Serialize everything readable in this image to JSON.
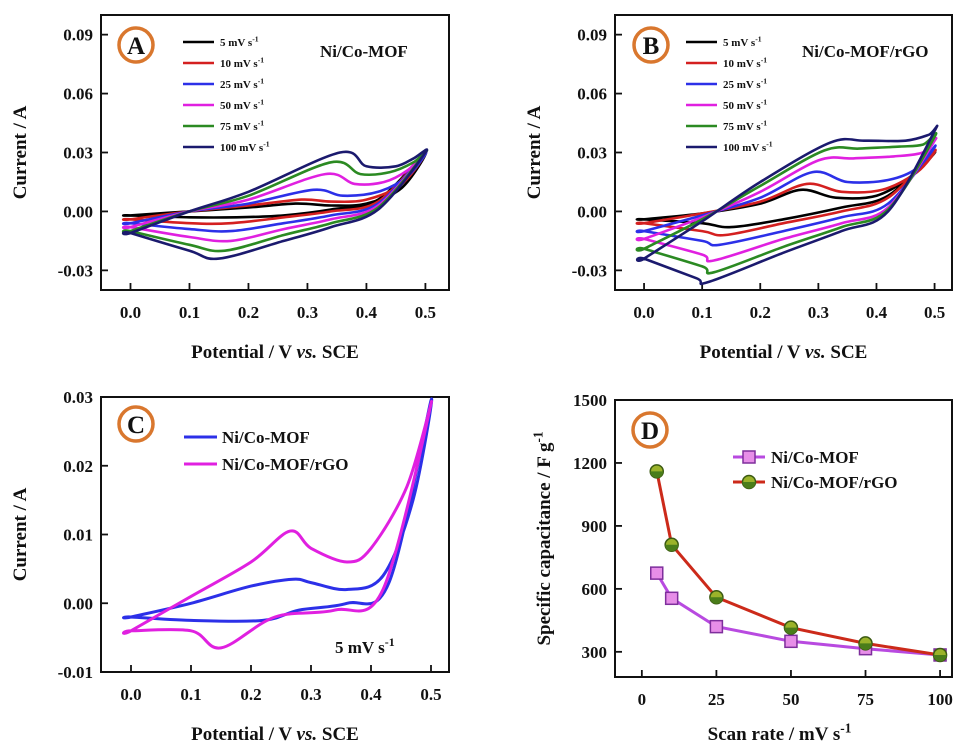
{
  "colors": {
    "axis": "#111111",
    "badge_ring": "#d9772e",
    "s5": "#000000",
    "s10": "#d42020",
    "s25": "#2c30e8",
    "s50": "#e020e0",
    "s75": "#2b8a22",
    "s100": "#1b1a6e",
    "d_mof": "#b84ae0",
    "d_rgo": "#cc2a1a"
  },
  "chart_data": [
    {
      "id": "A",
      "type": "line",
      "panel_label": "A",
      "title": "Ni/Co-MOF",
      "xlabel": "Potential / V vs. SCE",
      "ylabel": "Current / A",
      "xlim": [
        -0.05,
        0.54
      ],
      "ylim": [
        -0.04,
        0.1
      ],
      "xticks": [
        "0.0",
        "0.1",
        "0.2",
        "0.3",
        "0.4",
        "0.5"
      ],
      "yticks": [
        "0.09",
        "0.06",
        "0.03",
        "0.00",
        "-0.03"
      ],
      "legend_position": "top-left",
      "series": [
        {
          "name": "5 mV s-1",
          "color_key": "s5",
          "x": [
            0.0,
            0.1,
            0.2,
            0.28,
            0.34,
            0.4,
            0.46,
            0.5,
            0.42,
            0.34,
            0.26,
            0.18,
            0.1,
            0.0
          ],
          "y": [
            -0.002,
            0.0,
            0.002,
            0.004,
            0.003,
            0.004,
            0.012,
            0.03,
            0.006,
            0.001,
            -0.002,
            -0.003,
            -0.003,
            -0.002
          ]
        },
        {
          "name": "10 mV s-1",
          "color_key": "s10",
          "x": [
            0.0,
            0.1,
            0.2,
            0.29,
            0.34,
            0.4,
            0.46,
            0.5,
            0.42,
            0.34,
            0.26,
            0.17,
            0.1,
            0.0
          ],
          "y": [
            -0.004,
            0.0,
            0.003,
            0.006,
            0.005,
            0.006,
            0.014,
            0.03,
            0.005,
            0.0,
            -0.003,
            -0.006,
            -0.006,
            -0.004
          ]
        },
        {
          "name": "25 mV s-1",
          "color_key": "s25",
          "x": [
            0.0,
            0.1,
            0.2,
            0.31,
            0.36,
            0.42,
            0.47,
            0.5,
            0.42,
            0.34,
            0.26,
            0.17,
            0.1,
            0.0
          ],
          "y": [
            -0.006,
            0.0,
            0.004,
            0.011,
            0.008,
            0.01,
            0.018,
            0.03,
            0.004,
            -0.002,
            -0.006,
            -0.01,
            -0.009,
            -0.006
          ]
        },
        {
          "name": "50 mV s-1",
          "color_key": "s50",
          "x": [
            0.0,
            0.1,
            0.2,
            0.33,
            0.38,
            0.43,
            0.47,
            0.5,
            0.42,
            0.34,
            0.26,
            0.17,
            0.1,
            0.0
          ],
          "y": [
            -0.008,
            0.0,
            0.006,
            0.019,
            0.014,
            0.015,
            0.021,
            0.03,
            0.003,
            -0.004,
            -0.009,
            -0.015,
            -0.013,
            -0.008
          ]
        },
        {
          "name": "75 mV s-1",
          "color_key": "s75",
          "x": [
            0.0,
            0.1,
            0.2,
            0.34,
            0.39,
            0.44,
            0.48,
            0.5,
            0.42,
            0.34,
            0.26,
            0.16,
            0.1,
            0.0
          ],
          "y": [
            -0.01,
            0.0,
            0.008,
            0.025,
            0.019,
            0.02,
            0.025,
            0.03,
            0.002,
            -0.006,
            -0.012,
            -0.02,
            -0.017,
            -0.01
          ]
        },
        {
          "name": "100 mV s-1",
          "color_key": "s100",
          "x": [
            0.0,
            0.1,
            0.2,
            0.355,
            0.4,
            0.45,
            0.48,
            0.5,
            0.42,
            0.34,
            0.26,
            0.15,
            0.1,
            0.0
          ],
          "y": [
            -0.011,
            0.0,
            0.01,
            0.03,
            0.023,
            0.023,
            0.027,
            0.03,
            0.001,
            -0.008,
            -0.015,
            -0.024,
            -0.02,
            -0.011
          ]
        }
      ]
    },
    {
      "id": "B",
      "type": "line",
      "panel_label": "B",
      "title": "Ni/Co-MOF/rGO",
      "xlabel": "Potential / V vs. SCE",
      "ylabel": "Current / A",
      "xlim": [
        -0.05,
        0.53
      ],
      "ylim": [
        -0.04,
        0.1
      ],
      "xticks": [
        "0.0",
        "0.1",
        "0.2",
        "0.3",
        "0.4",
        "0.5"
      ],
      "yticks": [
        "0.09",
        "0.06",
        "0.03",
        "0.00",
        "-0.03"
      ],
      "legend_position": "top-left",
      "series": [
        {
          "name": "5 mV s-1",
          "color_key": "s5",
          "x": [
            0.0,
            0.1,
            0.2,
            0.27,
            0.33,
            0.4,
            0.46,
            0.5,
            0.42,
            0.34,
            0.24,
            0.15,
            0.1,
            0.0
          ],
          "y": [
            -0.004,
            -0.001,
            0.004,
            0.011,
            0.007,
            0.008,
            0.018,
            0.03,
            0.008,
            0.002,
            -0.004,
            -0.008,
            -0.006,
            -0.004
          ]
        },
        {
          "name": "10 mV s-1",
          "color_key": "s10",
          "x": [
            0.0,
            0.1,
            0.2,
            0.28,
            0.34,
            0.41,
            0.47,
            0.5,
            0.42,
            0.34,
            0.24,
            0.14,
            0.1,
            0.0
          ],
          "y": [
            -0.006,
            -0.001,
            0.005,
            0.014,
            0.01,
            0.011,
            0.02,
            0.031,
            0.007,
            0.0,
            -0.006,
            -0.012,
            -0.01,
            -0.006
          ]
        },
        {
          "name": "25 mV s-1",
          "color_key": "s25",
          "x": [
            0.0,
            0.1,
            0.2,
            0.29,
            0.35,
            0.42,
            0.47,
            0.5,
            0.42,
            0.34,
            0.24,
            0.13,
            0.1,
            0.0
          ],
          "y": [
            -0.01,
            -0.002,
            0.007,
            0.02,
            0.015,
            0.016,
            0.022,
            0.033,
            0.004,
            -0.003,
            -0.01,
            -0.017,
            -0.015,
            -0.01
          ]
        },
        {
          "name": "50 mV s-1",
          "color_key": "s50",
          "x": [
            0.0,
            0.1,
            0.2,
            0.3,
            0.36,
            0.43,
            0.48,
            0.5,
            0.42,
            0.34,
            0.24,
            0.12,
            0.1,
            0.0
          ],
          "y": [
            -0.014,
            -0.003,
            0.01,
            0.026,
            0.027,
            0.028,
            0.03,
            0.036,
            0.002,
            -0.006,
            -0.014,
            -0.025,
            -0.022,
            -0.014
          ]
        },
        {
          "name": "75 mV s-1",
          "color_key": "s75",
          "x": [
            0.0,
            0.1,
            0.2,
            0.31,
            0.37,
            0.44,
            0.48,
            0.5,
            0.42,
            0.34,
            0.24,
            0.12,
            0.1,
            0.0
          ],
          "y": [
            -0.019,
            -0.004,
            0.013,
            0.031,
            0.032,
            0.033,
            0.034,
            0.038,
            0.001,
            -0.008,
            -0.018,
            -0.031,
            -0.028,
            -0.019
          ]
        },
        {
          "name": "100 mV s-1",
          "color_key": "s100",
          "x": [
            0.0,
            0.1,
            0.2,
            0.32,
            0.38,
            0.45,
            0.49,
            0.5,
            0.42,
            0.34,
            0.24,
            0.11,
            0.09,
            0.0
          ],
          "y": [
            -0.024,
            -0.005,
            0.015,
            0.035,
            0.036,
            0.036,
            0.039,
            0.041,
            0.0,
            -0.01,
            -0.021,
            -0.036,
            -0.034,
            -0.024
          ]
        }
      ]
    },
    {
      "id": "C",
      "type": "line",
      "panel_label": "C",
      "annotation": "5 mV s-1",
      "xlabel": "Potential / V vs. SCE",
      "ylabel": "Current / A",
      "xlim": [
        -0.05,
        0.53
      ],
      "ylim": [
        -0.01,
        0.03
      ],
      "xticks": [
        "0.0",
        "0.1",
        "0.2",
        "0.3",
        "0.4",
        "0.5"
      ],
      "yticks": [
        "0.03",
        "0.02",
        "0.01",
        "0.00",
        "-0.01"
      ],
      "legend_position": "top-center",
      "series": [
        {
          "name": "Ni/Co-MOF",
          "color_key": "s25",
          "x": [
            0.0,
            0.1,
            0.2,
            0.27,
            0.3,
            0.36,
            0.42,
            0.47,
            0.5,
            0.43,
            0.36,
            0.28,
            0.22,
            0.1,
            0.0
          ],
          "y": [
            -0.002,
            0.0,
            0.0025,
            0.0035,
            0.003,
            0.002,
            0.004,
            0.015,
            0.0295,
            0.003,
            0.0,
            -0.001,
            -0.0025,
            -0.0025,
            -0.002
          ]
        },
        {
          "name": "Ni/Co-MOF/rGO",
          "color_key": "s50",
          "x": [
            0.0,
            0.1,
            0.2,
            0.265,
            0.3,
            0.36,
            0.4,
            0.46,
            0.5,
            0.42,
            0.34,
            0.24,
            0.15,
            0.1,
            0.0
          ],
          "y": [
            -0.004,
            0.001,
            0.006,
            0.0105,
            0.008,
            0.006,
            0.008,
            0.017,
            0.029,
            0.002,
            -0.001,
            -0.002,
            -0.0065,
            -0.004,
            -0.004
          ]
        }
      ]
    },
    {
      "id": "D",
      "type": "line",
      "panel_label": "D",
      "xlabel": "Scan rate / mV s-1",
      "ylabel": "Specific capacitance / F g-1",
      "xlim": [
        -9,
        104
      ],
      "ylim": [
        180,
        1500
      ],
      "xticks": [
        "0",
        "25",
        "50",
        "75",
        "100"
      ],
      "yticks": [
        "1500",
        "1200",
        "900",
        "600",
        "300"
      ],
      "legend_position": "top-right",
      "series": [
        {
          "name": "Ni/Co-MOF",
          "color_key": "d_mof",
          "x": [
            5,
            10,
            25,
            50,
            75,
            100
          ],
          "y": [
            675,
            555,
            420,
            350,
            315,
            285
          ]
        },
        {
          "name": "Ni/Co-MOF/rGO",
          "color_key": "d_rgo",
          "x": [
            5,
            10,
            25,
            50,
            75,
            100
          ],
          "y": [
            1160,
            810,
            560,
            415,
            340,
            285
          ]
        }
      ]
    }
  ]
}
